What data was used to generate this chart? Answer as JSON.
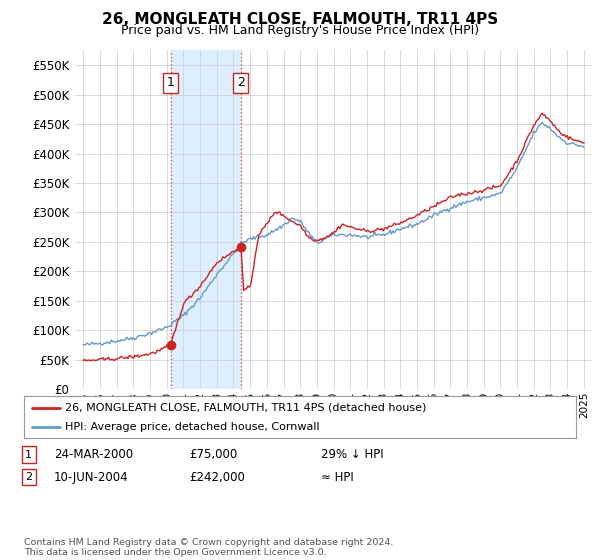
{
  "title": "26, MONGLEATH CLOSE, FALMOUTH, TR11 4PS",
  "subtitle": "Price paid vs. HM Land Registry's House Price Index (HPI)",
  "legend_line1": "26, MONGLEATH CLOSE, FALMOUTH, TR11 4PS (detached house)",
  "legend_line2": "HPI: Average price, detached house, Cornwall",
  "footnote": "Contains HM Land Registry data © Crown copyright and database right 2024.\nThis data is licensed under the Open Government Licence v3.0.",
  "table": [
    {
      "num": "1",
      "date": "24-MAR-2000",
      "price": "£75,000",
      "hpi": "29% ↓ HPI"
    },
    {
      "num": "2",
      "date": "10-JUN-2004",
      "price": "£242,000",
      "hpi": "≈ HPI"
    }
  ],
  "sale1_date": 2000.23,
  "sale1_price": 75000,
  "sale2_date": 2004.44,
  "sale2_price": 242000,
  "hpi_color": "#6699cc",
  "sale_color": "#cc2222",
  "bg_color": "#ffffff",
  "grid_color": "#cccccc",
  "shade_color": "#ddeeff",
  "ylim": [
    0,
    575000
  ],
  "yticks": [
    0,
    50000,
    100000,
    150000,
    200000,
    250000,
    300000,
    350000,
    400000,
    450000,
    500000,
    550000
  ],
  "xlim": [
    1994.5,
    2025.5
  ],
  "hpi_anchors": [
    [
      1995.0,
      75000
    ],
    [
      1996.0,
      78000
    ],
    [
      1997.0,
      82000
    ],
    [
      1998.0,
      87000
    ],
    [
      1999.0,
      95000
    ],
    [
      2000.0,
      105000
    ],
    [
      2001.0,
      125000
    ],
    [
      2002.0,
      155000
    ],
    [
      2003.0,
      195000
    ],
    [
      2004.0,
      230000
    ],
    [
      2004.5,
      248000
    ],
    [
      2005.0,
      255000
    ],
    [
      2006.0,
      262000
    ],
    [
      2007.0,
      278000
    ],
    [
      2007.5,
      290000
    ],
    [
      2008.0,
      285000
    ],
    [
      2008.5,
      265000
    ],
    [
      2009.0,
      248000
    ],
    [
      2009.5,
      255000
    ],
    [
      2010.0,
      262000
    ],
    [
      2011.0,
      262000
    ],
    [
      2012.0,
      258000
    ],
    [
      2013.0,
      262000
    ],
    [
      2014.0,
      272000
    ],
    [
      2015.0,
      280000
    ],
    [
      2016.0,
      295000
    ],
    [
      2017.0,
      308000
    ],
    [
      2018.0,
      318000
    ],
    [
      2019.0,
      325000
    ],
    [
      2020.0,
      332000
    ],
    [
      2021.0,
      375000
    ],
    [
      2022.0,
      435000
    ],
    [
      2022.5,
      452000
    ],
    [
      2023.0,
      442000
    ],
    [
      2023.5,
      428000
    ],
    [
      2024.0,
      418000
    ],
    [
      2024.5,
      415000
    ],
    [
      2025.0,
      412000
    ]
  ],
  "red_anchors": [
    [
      1995.0,
      48000
    ],
    [
      1996.0,
      50000
    ],
    [
      1997.0,
      52000
    ],
    [
      1998.0,
      55000
    ],
    [
      1999.0,
      60000
    ],
    [
      1999.5,
      65000
    ],
    [
      2000.23,
      75000
    ],
    [
      2001.0,
      145000
    ],
    [
      2002.0,
      175000
    ],
    [
      2003.0,
      215000
    ],
    [
      2004.44,
      242000
    ],
    [
      2004.6,
      168000
    ],
    [
      2005.0,
      172000
    ],
    [
      2005.5,
      262000
    ],
    [
      2006.0,
      280000
    ],
    [
      2006.5,
      302000
    ],
    [
      2007.0,
      295000
    ],
    [
      2007.5,
      285000
    ],
    [
      2008.0,
      278000
    ],
    [
      2008.5,
      258000
    ],
    [
      2009.0,
      252000
    ],
    [
      2009.5,
      258000
    ],
    [
      2010.0,
      265000
    ],
    [
      2010.5,
      280000
    ],
    [
      2011.0,
      275000
    ],
    [
      2012.0,
      268000
    ],
    [
      2013.0,
      272000
    ],
    [
      2014.0,
      282000
    ],
    [
      2015.0,
      295000
    ],
    [
      2016.0,
      310000
    ],
    [
      2017.0,
      325000
    ],
    [
      2017.5,
      330000
    ],
    [
      2018.0,
      332000
    ],
    [
      2019.0,
      338000
    ],
    [
      2020.0,
      345000
    ],
    [
      2021.0,
      388000
    ],
    [
      2022.0,
      448000
    ],
    [
      2022.5,
      468000
    ],
    [
      2023.0,
      455000
    ],
    [
      2023.5,
      438000
    ],
    [
      2024.0,
      428000
    ],
    [
      2024.5,
      422000
    ],
    [
      2025.0,
      418000
    ]
  ]
}
